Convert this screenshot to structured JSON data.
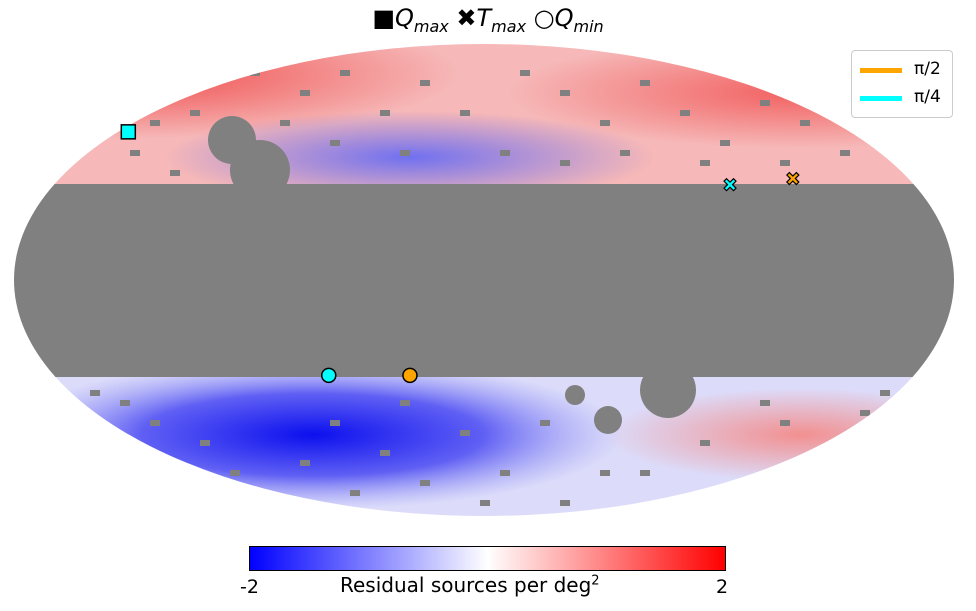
{
  "chart_data": {
    "type": "heatmap",
    "projection": "mollweide",
    "title": {
      "square_symbol": "■",
      "square_label": "Q",
      "square_sub": "max",
      "cross_symbol": "✖",
      "cross_label": "T",
      "cross_sub": "max",
      "circle_symbol": "○",
      "circle_label": "Q",
      "circle_sub": "min"
    },
    "masked_color": "#808080",
    "colormap": {
      "low": "#0000ff",
      "mid": "#ffffff",
      "high": "#ff0000"
    },
    "colorbar": {
      "min": -2,
      "max": 2,
      "min_label": "-2",
      "max_label": "2",
      "label": "Residual sources per deg",
      "label_sup": "2"
    },
    "legend": [
      {
        "label": "π/2",
        "color": "#ffa500"
      },
      {
        "label": "π/4",
        "color": "#00ffff"
      }
    ],
    "markers": [
      {
        "type": "square",
        "series": "π/4",
        "color": "#00ffff",
        "lon": 175,
        "lat": 48
      },
      {
        "type": "cross",
        "series": "π/4",
        "color": "#00ffff",
        "lon": -103,
        "lat": 30
      },
      {
        "type": "cross",
        "series": "π/2",
        "color": "#ffa500",
        "lon": -131,
        "lat": 32
      },
      {
        "type": "circle",
        "series": "π/4",
        "color": "#00ffff",
        "lon": 65,
        "lat": -30
      },
      {
        "type": "circle",
        "series": "π/2",
        "color": "#ffa500",
        "lon": 31,
        "lat": -30
      }
    ]
  }
}
